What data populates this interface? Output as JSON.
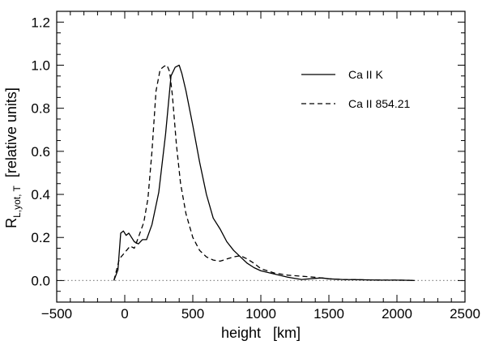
{
  "chart_data": {
    "type": "line",
    "title": "",
    "xlabel": "height   [km]",
    "ylabel_main": "R",
    "ylabel_sub": "L,yot, T",
    "ylabel_tail": "  [relative units]",
    "xlim": [
      -500,
      2500
    ],
    "ylim": [
      -0.1,
      1.25
    ],
    "x_ticks": [
      -500,
      0,
      500,
      1000,
      1500,
      2000,
      2500
    ],
    "x_tick_labels": [
      "−500",
      "0",
      "500",
      "1000",
      "1500",
      "2000",
      "2500"
    ],
    "y_ticks": [
      0.0,
      0.2,
      0.4,
      0.6,
      0.8,
      1.0,
      1.2
    ],
    "y_tick_labels": [
      "0.0",
      "0.2",
      "0.4",
      "0.6",
      "0.8",
      "1.0",
      "1.2"
    ],
    "grid": false,
    "legend_position": "top-right",
    "reference_line": {
      "y": 0.0,
      "style": "dotted",
      "color": "#888888"
    },
    "series": [
      {
        "name": "Ca II K",
        "style": "solid",
        "color": "#000000",
        "x": [
          -80,
          -50,
          -30,
          -10,
          10,
          30,
          50,
          70,
          100,
          130,
          160,
          200,
          250,
          300,
          340,
          370,
          400,
          420,
          450,
          500,
          550,
          600,
          650,
          700,
          750,
          800,
          850,
          900,
          950,
          1000,
          1100,
          1200,
          1300,
          1400,
          1450,
          1500,
          1600,
          1700,
          1800,
          1900,
          2000,
          2100,
          2130
        ],
        "y": [
          0.0,
          0.05,
          0.22,
          0.23,
          0.21,
          0.22,
          0.2,
          0.18,
          0.17,
          0.19,
          0.19,
          0.26,
          0.41,
          0.68,
          0.95,
          0.99,
          1.0,
          0.96,
          0.88,
          0.72,
          0.55,
          0.4,
          0.29,
          0.24,
          0.18,
          0.14,
          0.11,
          0.08,
          0.06,
          0.045,
          0.03,
          0.015,
          0.005,
          0.01,
          0.012,
          0.008,
          0.005,
          0.004,
          0.003,
          0.002,
          0.002,
          0.001,
          0.0
        ]
      },
      {
        "name": "Ca II 854.21",
        "style": "dashed",
        "color": "#000000",
        "x": [
          -80,
          -40,
          0,
          40,
          70,
          100,
          140,
          170,
          200,
          230,
          260,
          290,
          310,
          330,
          350,
          380,
          410,
          450,
          500,
          550,
          600,
          650,
          700,
          750,
          800,
          850,
          900,
          950,
          1000,
          1100,
          1200,
          1300,
          1400,
          1500,
          1600,
          1700,
          1800,
          1900,
          2000,
          2100,
          2130
        ],
        "y": [
          0.0,
          0.1,
          0.13,
          0.16,
          0.15,
          0.2,
          0.27,
          0.38,
          0.6,
          0.88,
          0.98,
          0.995,
          1.0,
          0.97,
          0.86,
          0.63,
          0.45,
          0.31,
          0.2,
          0.14,
          0.11,
          0.095,
          0.09,
          0.1,
          0.11,
          0.115,
          0.1,
          0.08,
          0.055,
          0.035,
          0.025,
          0.02,
          0.015,
          0.008,
          0.005,
          0.004,
          0.003,
          0.002,
          0.002,
          0.001,
          0.0
        ]
      }
    ]
  }
}
